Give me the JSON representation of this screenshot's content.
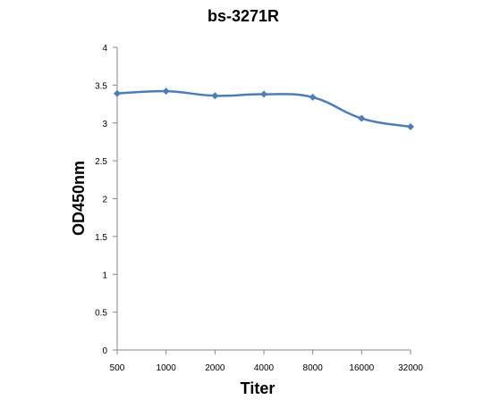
{
  "chart_data": {
    "type": "line",
    "title": "bs-3271R",
    "xlabel": "Titer",
    "ylabel": "OD450nm",
    "categories": [
      "500",
      "1000",
      "2000",
      "4000",
      "8000",
      "16000",
      "32000"
    ],
    "series": [
      {
        "values": [
          3.39,
          3.42,
          3.36,
          3.38,
          3.34,
          3.06,
          2.95
        ]
      }
    ],
    "ylim": [
      0,
      4
    ],
    "yticks": [
      "0",
      "0.5",
      "1",
      "1.5",
      "2",
      "2.5",
      "3",
      "3.5",
      "4"
    ],
    "grid": false,
    "legend": "none",
    "colors": {
      "line": "#4a7ebb",
      "axis": "#868686",
      "text": "#000000"
    }
  }
}
